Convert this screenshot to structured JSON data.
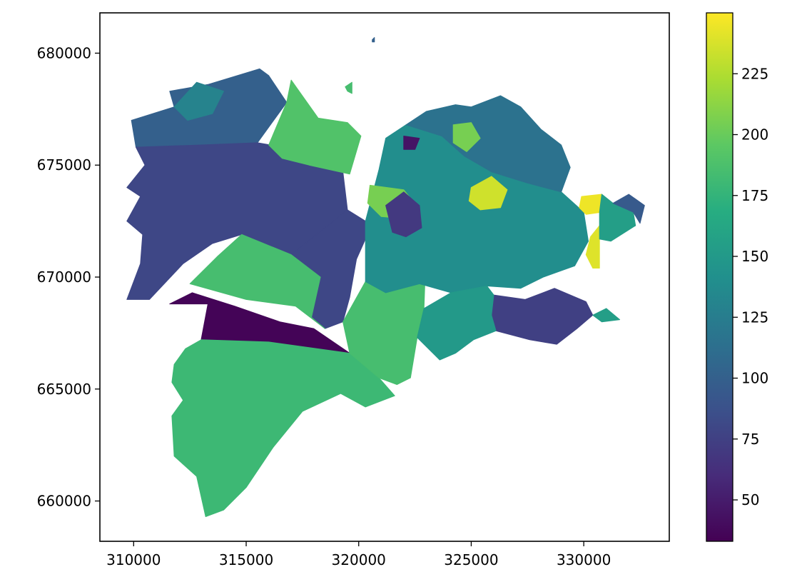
{
  "chart_data": {
    "type": "choropleth",
    "title": "",
    "xlabel": "",
    "ylabel": "",
    "xlim": [
      308500,
      333800
    ],
    "ylim": [
      658200,
      681800
    ],
    "x_ticks": [
      {
        "value": 310000,
        "label": "310000"
      },
      {
        "value": 315000,
        "label": "315000"
      },
      {
        "value": 320000,
        "label": "320000"
      },
      {
        "value": 325000,
        "label": "325000"
      },
      {
        "value": 330000,
        "label": "330000"
      }
    ],
    "y_ticks": [
      {
        "value": 660000,
        "label": "660000"
      },
      {
        "value": 665000,
        "label": "665000"
      },
      {
        "value": 670000,
        "label": "670000"
      },
      {
        "value": 675000,
        "label": "675000"
      },
      {
        "value": 680000,
        "label": "680000"
      }
    ],
    "colorbar": {
      "colormap": "viridis",
      "vmin": 33,
      "vmax": 250,
      "ticks": [
        {
          "value": 50,
          "label": "50"
        },
        {
          "value": 75,
          "label": "75"
        },
        {
          "value": 100,
          "label": "100"
        },
        {
          "value": 125,
          "label": "125"
        },
        {
          "value": 150,
          "label": "150"
        },
        {
          "value": 175,
          "label": "175"
        },
        {
          "value": 200,
          "label": "200"
        },
        {
          "value": 225,
          "label": "225"
        }
      ]
    },
    "regions": [
      {
        "id": "north-west",
        "value": 100,
        "outline": [
          [
            309900,
            677000
          ],
          [
            311800,
            677600
          ],
          [
            311600,
            678300
          ],
          [
            313300,
            678600
          ],
          [
            315600,
            679300
          ],
          [
            316000,
            679000
          ],
          [
            316800,
            677800
          ],
          [
            315500,
            676000
          ],
          [
            313000,
            675900
          ],
          [
            310100,
            675800
          ]
        ]
      },
      {
        "id": "north-west-top",
        "value": 130,
        "outline": [
          [
            311800,
            677600
          ],
          [
            312800,
            678700
          ],
          [
            314000,
            678300
          ],
          [
            313500,
            677300
          ],
          [
            312400,
            677000
          ]
        ]
      },
      {
        "id": "west-large",
        "value": 80,
        "outline": [
          [
            310100,
            675800
          ],
          [
            313000,
            675900
          ],
          [
            315500,
            676000
          ],
          [
            317800,
            675600
          ],
          [
            319300,
            674700
          ],
          [
            319500,
            673000
          ],
          [
            319000,
            672600
          ],
          [
            317000,
            671000
          ],
          [
            314800,
            671900
          ],
          [
            313500,
            671500
          ],
          [
            312200,
            670600
          ],
          [
            310700,
            669000
          ],
          [
            309700,
            669000
          ],
          [
            310300,
            670600
          ],
          [
            310400,
            671900
          ],
          [
            309700,
            672500
          ],
          [
            310300,
            673600
          ],
          [
            309700,
            674000
          ],
          [
            310500,
            675000
          ]
        ]
      },
      {
        "id": "north-central",
        "value": 190,
        "outline": [
          [
            316800,
            677800
          ],
          [
            317000,
            678800
          ],
          [
            318200,
            677100
          ],
          [
            319500,
            676900
          ],
          [
            320100,
            676300
          ],
          [
            319600,
            674600
          ],
          [
            317800,
            675000
          ],
          [
            316600,
            675300
          ],
          [
            316000,
            675900
          ]
        ]
      },
      {
        "id": "central-mid",
        "value": 80,
        "outline": [
          [
            317000,
            671000
          ],
          [
            319000,
            672600
          ],
          [
            319500,
            673000
          ],
          [
            320300,
            672500
          ],
          [
            320300,
            671700
          ],
          [
            319900,
            670800
          ],
          [
            319600,
            669100
          ],
          [
            319300,
            668000
          ],
          [
            318500,
            667700
          ],
          [
            317900,
            668200
          ],
          [
            318300,
            670000
          ]
        ]
      },
      {
        "id": "dark-band",
        "value": 35,
        "outline": [
          [
            311600,
            668800
          ],
          [
            312600,
            669300
          ],
          [
            314500,
            668700
          ],
          [
            316500,
            668000
          ],
          [
            318000,
            667700
          ],
          [
            319600,
            666600
          ],
          [
            316000,
            667100
          ],
          [
            313000,
            667200
          ],
          [
            313300,
            668800
          ]
        ]
      },
      {
        "id": "southwest",
        "value": 180,
        "outline": [
          [
            313000,
            667200
          ],
          [
            316000,
            667100
          ],
          [
            319600,
            666600
          ],
          [
            320900,
            665500
          ],
          [
            321600,
            664700
          ],
          [
            320300,
            664200
          ],
          [
            319200,
            664800
          ],
          [
            317500,
            664000
          ],
          [
            316200,
            662400
          ],
          [
            315000,
            660600
          ],
          [
            314000,
            659600
          ],
          [
            313200,
            659300
          ],
          [
            312800,
            661100
          ],
          [
            311800,
            662000
          ],
          [
            311700,
            663800
          ],
          [
            312200,
            664500
          ],
          [
            311700,
            665300
          ],
          [
            311800,
            666100
          ],
          [
            312300,
            666800
          ]
        ]
      },
      {
        "id": "west-green",
        "value": 185,
        "outline": [
          [
            314800,
            671900
          ],
          [
            317000,
            671000
          ],
          [
            318300,
            670000
          ],
          [
            317900,
            668200
          ],
          [
            318500,
            667700
          ],
          [
            317200,
            668700
          ],
          [
            315000,
            669000
          ],
          [
            312500,
            669700
          ],
          [
            313700,
            670900
          ]
        ]
      },
      {
        "id": "south-central-green",
        "value": 185,
        "outline": [
          [
            319300,
            668000
          ],
          [
            320300,
            669800
          ],
          [
            321200,
            669300
          ],
          [
            322700,
            669700
          ],
          [
            323000,
            671500
          ],
          [
            322900,
            668600
          ],
          [
            322600,
            667300
          ],
          [
            322300,
            665500
          ],
          [
            321700,
            665200
          ],
          [
            320900,
            665500
          ],
          [
            319600,
            666600
          ]
        ]
      },
      {
        "id": "centre",
        "value": 140,
        "outline": [
          [
            320300,
            672500
          ],
          [
            320900,
            674800
          ],
          [
            321200,
            676200
          ],
          [
            322100,
            676800
          ],
          [
            323700,
            676300
          ],
          [
            324700,
            675400
          ],
          [
            325900,
            674700
          ],
          [
            327500,
            674200
          ],
          [
            329000,
            673800
          ],
          [
            330000,
            672900
          ],
          [
            330200,
            671600
          ],
          [
            329600,
            670500
          ],
          [
            328200,
            670000
          ],
          [
            327200,
            669500
          ],
          [
            325700,
            669600
          ],
          [
            324100,
            669300
          ],
          [
            322700,
            669700
          ],
          [
            321200,
            669300
          ],
          [
            320300,
            669800
          ]
        ]
      },
      {
        "id": "centre-north",
        "value": 115,
        "outline": [
          [
            322100,
            676800
          ],
          [
            323000,
            677400
          ],
          [
            324300,
            677700
          ],
          [
            325000,
            677600
          ],
          [
            326300,
            678100
          ],
          [
            327200,
            677600
          ],
          [
            328100,
            676600
          ],
          [
            329000,
            675900
          ],
          [
            329400,
            674900
          ],
          [
            329000,
            673800
          ],
          [
            327500,
            674200
          ],
          [
            325900,
            674700
          ],
          [
            324700,
            675400
          ],
          [
            323700,
            676300
          ]
        ]
      },
      {
        "id": "north-spot",
        "value": 205,
        "outline": [
          [
            324200,
            676800
          ],
          [
            325000,
            676900
          ],
          [
            325400,
            676200
          ],
          [
            324800,
            675600
          ],
          [
            324200,
            676000
          ]
        ]
      },
      {
        "id": "yellow-core",
        "value": 235,
        "outline": [
          [
            325000,
            674000
          ],
          [
            325900,
            674500
          ],
          [
            326600,
            673900
          ],
          [
            326300,
            673100
          ],
          [
            325400,
            673000
          ],
          [
            324900,
            673400
          ]
        ]
      },
      {
        "id": "lime-patch",
        "value": 205,
        "outline": [
          [
            320500,
            674100
          ],
          [
            322000,
            673900
          ],
          [
            322400,
            673400
          ],
          [
            322200,
            672600
          ],
          [
            321000,
            672700
          ],
          [
            320400,
            673300
          ]
        ]
      },
      {
        "id": "purple-west-centre",
        "value": 70,
        "outline": [
          [
            321200,
            673200
          ],
          [
            322000,
            673800
          ],
          [
            322700,
            673200
          ],
          [
            322800,
            672200
          ],
          [
            322100,
            671800
          ],
          [
            321500,
            672000
          ]
        ]
      },
      {
        "id": "dark-small",
        "value": 45,
        "outline": [
          [
            322000,
            676300
          ],
          [
            322700,
            676200
          ],
          [
            322500,
            675700
          ],
          [
            322000,
            675700
          ]
        ]
      },
      {
        "id": "east-purple",
        "value": 75,
        "outline": [
          [
            327400,
            669000
          ],
          [
            328700,
            669500
          ],
          [
            330100,
            668900
          ],
          [
            330400,
            668300
          ],
          [
            329700,
            667700
          ],
          [
            328800,
            667000
          ],
          [
            327600,
            667200
          ],
          [
            326100,
            667600
          ],
          [
            325900,
            668300
          ],
          [
            326000,
            669200
          ]
        ]
      },
      {
        "id": "east-yellow-1",
        "value": 245,
        "outline": [
          [
            329900,
            673600
          ],
          [
            330800,
            673700
          ],
          [
            330800,
            672900
          ],
          [
            330100,
            672800
          ],
          [
            329800,
            673100
          ]
        ]
      },
      {
        "id": "east-yellow-2",
        "value": 240,
        "outline": [
          [
            330300,
            671800
          ],
          [
            330700,
            672300
          ],
          [
            330700,
            670400
          ],
          [
            330400,
            670400
          ],
          [
            330100,
            671000
          ]
        ]
      },
      {
        "id": "south-centre-teal",
        "value": 150,
        "outline": [
          [
            322900,
            668600
          ],
          [
            324100,
            669300
          ],
          [
            325700,
            669600
          ],
          [
            326000,
            669200
          ],
          [
            325900,
            668300
          ],
          [
            326100,
            667600
          ],
          [
            325100,
            667200
          ],
          [
            324300,
            666600
          ],
          [
            323600,
            666300
          ],
          [
            322600,
            667300
          ]
        ]
      },
      {
        "id": "east-teal",
        "value": 155,
        "outline": [
          [
            330700,
            672900
          ],
          [
            330800,
            673700
          ],
          [
            331300,
            673300
          ],
          [
            332200,
            672900
          ],
          [
            332300,
            672300
          ],
          [
            331200,
            671600
          ],
          [
            330700,
            671700
          ]
        ]
      },
      {
        "id": "east-navy",
        "value": 95,
        "outline": [
          [
            331300,
            673300
          ],
          [
            332000,
            673700
          ],
          [
            332700,
            673200
          ],
          [
            332500,
            672400
          ],
          [
            332200,
            672900
          ]
        ]
      },
      {
        "id": "east-tail",
        "value": 155,
        "outline": [
          [
            330400,
            668300
          ],
          [
            331000,
            668600
          ],
          [
            331600,
            668100
          ],
          [
            330800,
            668000
          ]
        ]
      },
      {
        "id": "island",
        "value": 185,
        "outline": [
          [
            319400,
            678500
          ],
          [
            319700,
            678700
          ],
          [
            319700,
            678200
          ],
          [
            319500,
            678300
          ]
        ]
      },
      {
        "id": "island-dot",
        "value": 100,
        "outline": [
          [
            320600,
            680600
          ],
          [
            320700,
            680700
          ],
          [
            320700,
            680500
          ],
          [
            320600,
            680500
          ]
        ]
      }
    ]
  }
}
